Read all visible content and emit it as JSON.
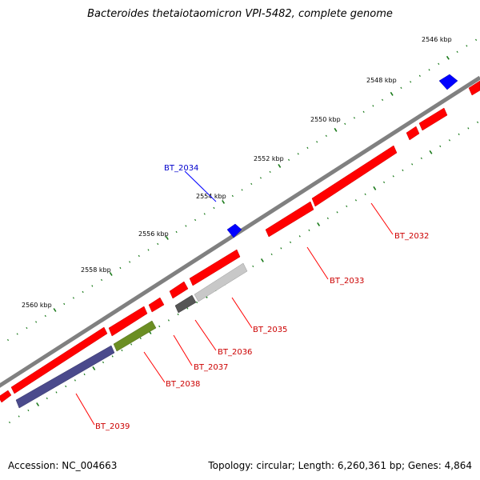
{
  "title": "Bacteroides thetaiotaomicron VPI-5482, complete genome",
  "footer": {
    "accession": "Accession: NC_004663",
    "summary": "Topology: circular; Length: 6,260,361 bp; Genes: 4,864"
  },
  "colors": {
    "backbone": "#808080",
    "tick": "#1a7a1a",
    "ruler_label": "#000000",
    "label_line_red": "#ff0000",
    "label_line_blue": "#0000ff"
  },
  "ruler_labels": [
    "2546 kbp",
    "2548 kbp",
    "2550 kbp",
    "2552 kbp",
    "2554 kbp",
    "2556 kbp",
    "2558 kbp",
    "2560 kbp"
  ],
  "gene_labels": [
    {
      "text": "BT_2034",
      "color": "#0000cc"
    },
    {
      "text": "BT_2032",
      "color": "#cc0000"
    },
    {
      "text": "BT_2033",
      "color": "#cc0000"
    },
    {
      "text": "BT_2035",
      "color": "#cc0000"
    },
    {
      "text": "BT_2036",
      "color": "#cc0000"
    },
    {
      "text": "BT_2037",
      "color": "#cc0000"
    },
    {
      "text": "BT_2038",
      "color": "#cc0000"
    },
    {
      "text": "BT_2039",
      "color": "#cc0000"
    }
  ],
  "feature_colors": {
    "red": "#ff0000",
    "blue": "#0000ff",
    "light_gray": "#c8c8c8",
    "dark_gray": "#555555",
    "olive": "#6b8e23",
    "slate_blue": "#4b4a8c"
  }
}
